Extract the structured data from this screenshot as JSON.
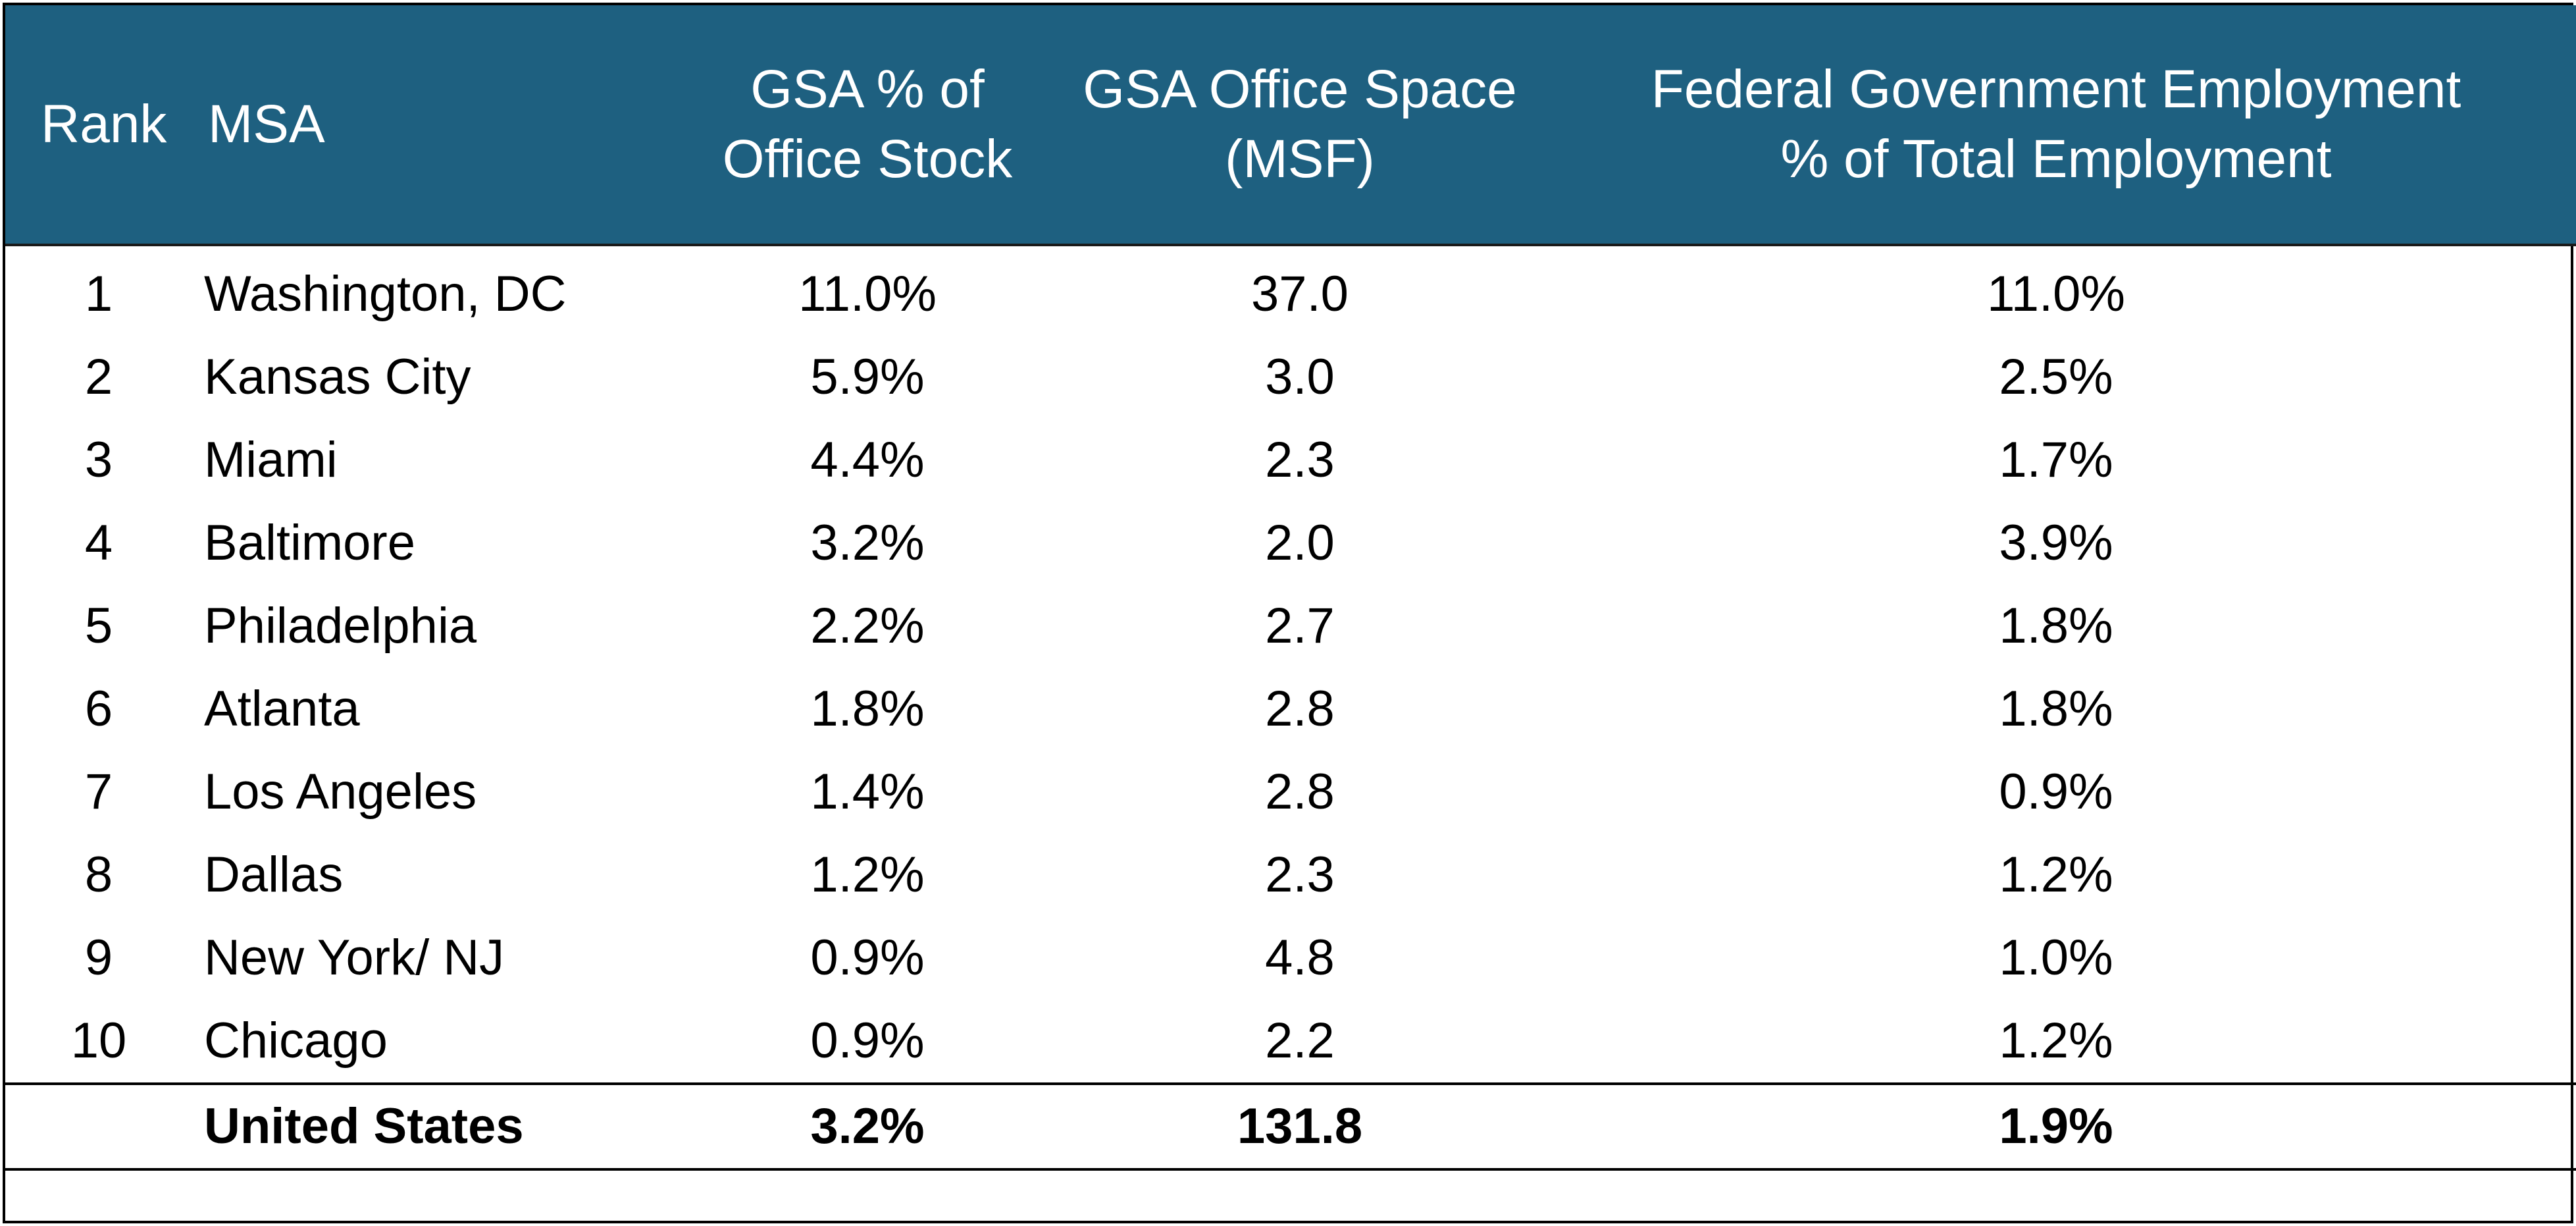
{
  "table": {
    "headers": {
      "rank": "Rank",
      "msa": "MSA",
      "pct_line1": "GSA % of",
      "pct_line2": "Office Stock",
      "msf_line1": "GSA Office Space",
      "msf_line2": "(MSF)",
      "emp_line1": "Federal Government Employment",
      "emp_line2": "% of Total Employment"
    },
    "rows": [
      {
        "rank": "1",
        "msa": "Washington, DC",
        "pct": "11.0%",
        "msf": "37.0",
        "emp": "11.0%"
      },
      {
        "rank": "2",
        "msa": "Kansas City",
        "pct": "5.9%",
        "msf": "3.0",
        "emp": "2.5%"
      },
      {
        "rank": "3",
        "msa": "Miami",
        "pct": "4.4%",
        "msf": "2.3",
        "emp": "1.7%"
      },
      {
        "rank": "4",
        "msa": "Baltimore",
        "pct": "3.2%",
        "msf": "2.0",
        "emp": "3.9%"
      },
      {
        "rank": "5",
        "msa": "Philadelphia",
        "pct": "2.2%",
        "msf": "2.7",
        "emp": "1.8%"
      },
      {
        "rank": "6",
        "msa": "Atlanta",
        "pct": "1.8%",
        "msf": "2.8",
        "emp": "1.8%"
      },
      {
        "rank": "7",
        "msa": "Los Angeles",
        "pct": "1.4%",
        "msf": "2.8",
        "emp": "0.9%"
      },
      {
        "rank": "8",
        "msa": "Dallas",
        "pct": "1.2%",
        "msf": "2.3",
        "emp": "1.2%"
      },
      {
        "rank": "9",
        "msa": "New York/ NJ",
        "pct": "0.9%",
        "msf": "4.8",
        "emp": "1.0%"
      },
      {
        "rank": "10",
        "msa": "Chicago",
        "pct": "0.9%",
        "msf": "2.2",
        "emp": "1.2%"
      }
    ],
    "total": {
      "rank": "",
      "msa": "United States",
      "pct": "3.2%",
      "msf": "131.8",
      "emp": "1.9%"
    }
  },
  "colors": {
    "header_background": "#1e6080",
    "header_text": "#ffffff",
    "body_text": "#000000"
  }
}
